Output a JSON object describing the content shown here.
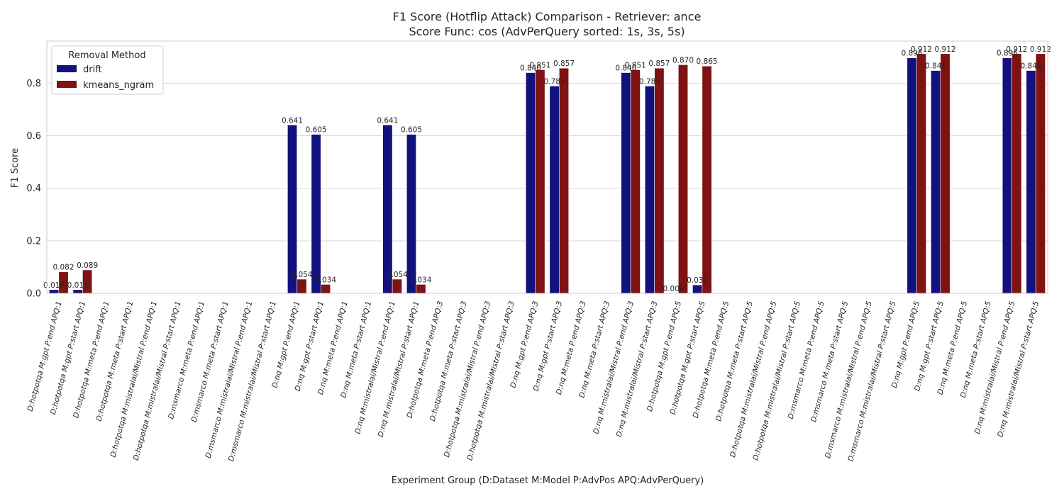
{
  "chart_data": {
    "type": "bar",
    "title": "F1 Score (Hotflip Attack) Comparison - Retriever: ance",
    "subtitle": "Score Func: cos (AdvPerQuery sorted: 1s, 3s, 5s)",
    "xlabel": "Experiment Group (D:Dataset M:Model P:AdvPos APQ:AdvPerQuery)",
    "ylabel": "F1 Score",
    "ylim": [
      0,
      0.96
    ],
    "yticks": [
      "0.0",
      "0.2",
      "0.4",
      "0.6",
      "0.8"
    ],
    "yticks_values": [
      0,
      0.2,
      0.4,
      0.6,
      0.8
    ],
    "grid": true,
    "legend": {
      "title": "Removal Method",
      "placement": "top-left"
    },
    "categories": [
      "D:hotpotqa M:gpt P:end APQ:1",
      "D:hotpotqa M:gpt P:start APQ:1",
      "D:hotpotqa M:meta P:end APQ:1",
      "D:hotpotqa M:meta P:start APQ:1",
      "D:hotpotqa M:mistralai/Mistral P:end APQ:1",
      "D:hotpotqa M:mistralai/Mistral P:start APQ:1",
      "D:msmarco M:meta P:end APQ:1",
      "D:msmarco M:meta P:start APQ:1",
      "D:msmarco M:mistralai/Mistral P:end APQ:1",
      "D:msmarco M:mistralai/Mistral P:start APQ:1",
      "D:nq M:gpt P:end APQ:1",
      "D:nq M:gpt P:start APQ:1",
      "D:nq M:meta P:end APQ:1",
      "D:nq M:meta P:start APQ:1",
      "D:nq M:mistralai/Mistral P:end APQ:1",
      "D:nq M:mistralai/Mistral P:start APQ:1",
      "D:hotpotqa M:meta P:end APQ:3",
      "D:hotpotqa M:meta P:start APQ:3",
      "D:hotpotqa M:mistralai/Mistral P:end APQ:3",
      "D:hotpotqa M:mistralai/Mistral P:start APQ:3",
      "D:nq M:gpt P:end APQ:3",
      "D:nq M:gpt P:start APQ:3",
      "D:nq M:meta P:end APQ:3",
      "D:nq M:meta P:start APQ:3",
      "D:nq M:mistralai/Mistral P:end APQ:3",
      "D:nq M:mistralai/Mistral P:start APQ:3",
      "D:hotpotqa M:gpt P:end APQ:5",
      "D:hotpotqa M:gpt P:start APQ:5",
      "D:hotpotqa M:meta P:end APQ:5",
      "D:hotpotqa M:meta P:start APQ:5",
      "D:hotpotqa M:mistralai/Mistral P:end APQ:5",
      "D:hotpotqa M:mistralai/Mistral P:start APQ:5",
      "D:msmarco M:meta P:end APQ:5",
      "D:msmarco M:meta P:start APQ:5",
      "D:msmarco M:mistralai/Mistral P:end APQ:5",
      "D:msmarco M:mistralai/Mistral P:start APQ:5",
      "D:nq M:gpt P:end APQ:5",
      "D:nq M:gpt P:start APQ:5",
      "D:nq M:meta P:end APQ:5",
      "D:nq M:meta P:start APQ:5",
      "D:nq M:mistralai/Mistral P:end APQ:5",
      "D:nq M:mistralai/Mistral P:start APQ:5"
    ],
    "series": [
      {
        "name": "drift",
        "color": "#12127f",
        "values": [
          0.014,
          0.014,
          null,
          null,
          null,
          null,
          null,
          null,
          null,
          null,
          0.641,
          0.605,
          null,
          null,
          0.641,
          0.605,
          null,
          null,
          null,
          null,
          0.84,
          0.789,
          null,
          null,
          0.84,
          0.789,
          0.0,
          0.032,
          null,
          null,
          null,
          null,
          null,
          null,
          null,
          null,
          0.896,
          0.848,
          null,
          null,
          0.896,
          0.848
        ],
        "labels": [
          "0.014",
          "0.014",
          null,
          null,
          null,
          null,
          null,
          null,
          null,
          null,
          "0.641",
          "0.605",
          null,
          null,
          "0.641",
          "0.605",
          null,
          null,
          null,
          null,
          "0.840",
          "0.789",
          null,
          null,
          "0.840",
          "0.789",
          "0.000",
          "0.032",
          null,
          null,
          null,
          null,
          null,
          null,
          null,
          null,
          "0.896",
          "0.848",
          null,
          null,
          "0.896",
          "0.848"
        ]
      },
      {
        "name": "kmeans_ngram",
        "color": "#7f1212",
        "values": [
          0.082,
          0.089,
          null,
          null,
          null,
          null,
          null,
          null,
          null,
          null,
          0.054,
          0.034,
          null,
          null,
          0.054,
          0.034,
          null,
          null,
          null,
          null,
          0.851,
          0.857,
          null,
          null,
          0.851,
          0.857,
          0.87,
          0.865,
          null,
          null,
          null,
          null,
          null,
          null,
          null,
          null,
          0.912,
          0.912,
          null,
          null,
          0.912,
          0.912
        ],
        "labels": [
          "0.082",
          "0.089",
          null,
          null,
          null,
          null,
          null,
          null,
          null,
          null,
          "0.054",
          "0.034",
          null,
          null,
          "0.054",
          "0.034",
          null,
          null,
          null,
          null,
          "0.851",
          "0.857",
          null,
          null,
          "0.851",
          "0.857",
          "0.870",
          "0.865",
          null,
          null,
          null,
          null,
          null,
          null,
          null,
          null,
          "0.912",
          "0.912",
          null,
          null,
          "0.912",
          "0.912"
        ]
      }
    ]
  }
}
